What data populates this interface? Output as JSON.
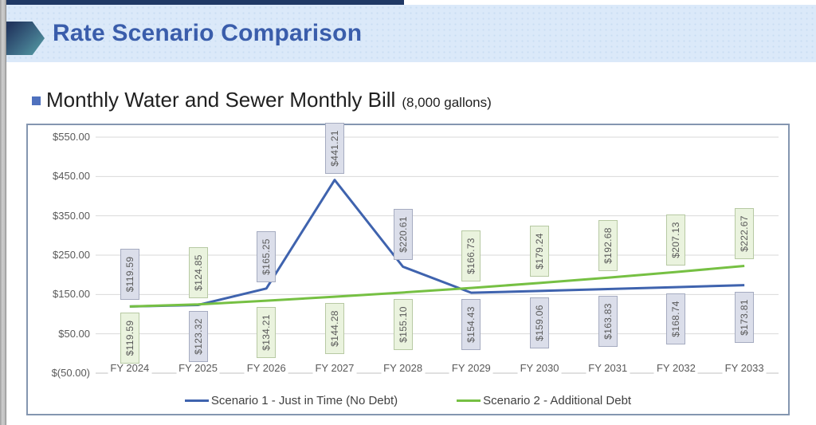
{
  "header": {
    "title": "Rate Scenario Comparison",
    "title_color": "#3a5dab",
    "banner_bg": "#dbe9f9",
    "accent_line_color": "#1f3864",
    "arrow_icon": "chevron-right-arrow"
  },
  "heading": {
    "bullet_icon": "square-bullet",
    "bullet_color": "#4f71be",
    "text": "Monthly Water and Sewer Monthly Bill",
    "note": "(8,000 gallons)"
  },
  "chart_data": {
    "type": "line",
    "title": "Monthly Water and Sewer Monthly Bill (8,000 gallons)",
    "categories": [
      "FY 2024",
      "FY 2025",
      "FY 2026",
      "FY 2027",
      "FY 2028",
      "FY 2029",
      "FY 2030",
      "FY 2031",
      "FY 2032",
      "FY 2033"
    ],
    "series": [
      {
        "name": "Scenario 1 - Just in Time (No Debt)",
        "color": "#3f63ae",
        "label_fill": "#dbdeea",
        "label_border": "#a5abc0",
        "values": [
          119.59,
          123.32,
          165.25,
          441.21,
          220.61,
          154.43,
          159.06,
          163.83,
          168.74,
          173.81
        ]
      },
      {
        "name": "Scenario 2 - Additional Debt",
        "color": "#76c043",
        "label_fill": "#eaf3de",
        "label_border": "#b7c9a3",
        "values": [
          119.59,
          124.85,
          134.21,
          144.28,
          155.1,
          166.73,
          179.24,
          192.68,
          207.13,
          222.67
        ]
      }
    ],
    "y_ticks": [
      "$550.00",
      "$450.00",
      "$350.00",
      "$250.00",
      "$150.00",
      "$50.00",
      "$(50.00)"
    ],
    "y_tick_values": [
      550,
      450,
      350,
      250,
      150,
      50,
      -50
    ],
    "ylim": [
      -50,
      550
    ],
    "grid": true,
    "gridline_color": "#d9d9d9",
    "axis_line_color": "#c2c2c2",
    "data_labels": "currency, 2 decimals, rotated 90",
    "legend_position": "bottom"
  }
}
